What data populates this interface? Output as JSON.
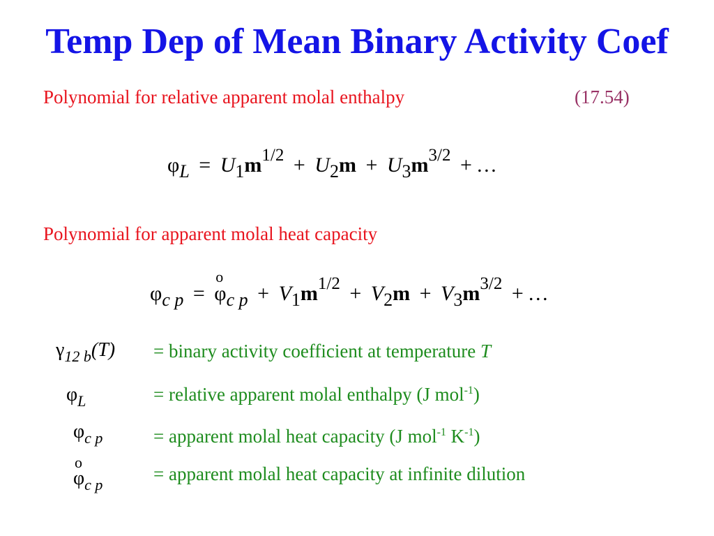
{
  "title": "Temp Dep of Mean Binary Activity Coef",
  "section1": {
    "heading": "Polynomial for relative apparent molal enthalpy",
    "equation_number": "(17.54)"
  },
  "equation1": {
    "phi": "φ",
    "phi_sub": "L",
    "eq": "=",
    "c1": "U",
    "c1_sub": "1",
    "m": "m",
    "p1": "1/2",
    "plus": "+",
    "c2": "U",
    "c2_sub": "2",
    "c3": "U",
    "c3_sub": "3",
    "p3": "3/2",
    "ellipsis": "…"
  },
  "section2": {
    "heading": "Polynomial for apparent molal heat capacity"
  },
  "equation2": {
    "phi": "φ",
    "lhs_sub": "c p",
    "eq": "=",
    "zero": "o",
    "c1": "V",
    "c1_sub": "1",
    "m": "m",
    "p1": "1/2",
    "plus": "+",
    "c2": "V",
    "c2_sub": "2",
    "c3": "V",
    "c3_sub": "3",
    "p3": "3/2",
    "ellipsis": "…"
  },
  "definitions": [
    {
      "sym": "γ",
      "sub": "12 b",
      "arg": "(T)",
      "text": "= binary activity coefficient at temperature ",
      "text_var": "T"
    },
    {
      "sym": "φ",
      "sub": "L",
      "text": "= relative apparent molal enthalpy (J mol",
      "sup1": "-1",
      "tail": ")"
    },
    {
      "sym": "φ",
      "sub": "c p",
      "text": "= apparent molal heat capacity (J mol",
      "sup1": "-1",
      "mid": " K",
      "sup2": "-1",
      "tail": ")"
    },
    {
      "sym": "φ",
      "sub": "c p",
      "zero": "o",
      "text": "= apparent molal heat capacity at infinite dilution"
    }
  ],
  "colors": {
    "title": "#1414e6",
    "heading": "#e8141e",
    "equation_number": "#993366",
    "definition_text": "#1e8c1e"
  }
}
